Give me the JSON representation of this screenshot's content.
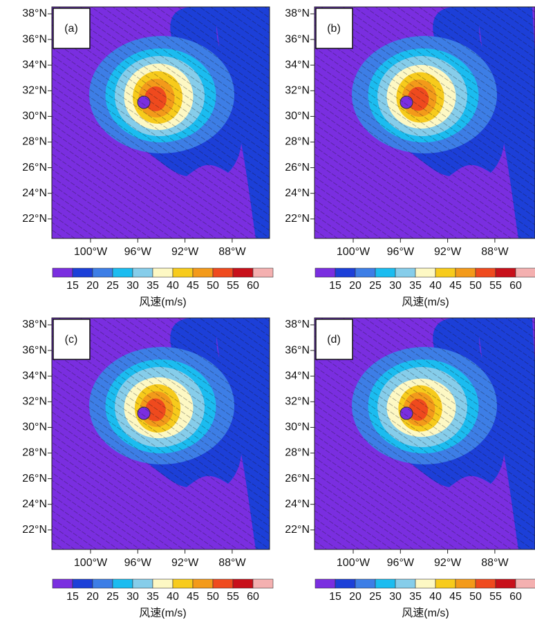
{
  "panels": [
    {
      "label": "(a)"
    },
    {
      "label": "(b)"
    },
    {
      "label": "(c)"
    },
    {
      "label": "(d)"
    }
  ],
  "lat_ticks": [
    "38°N",
    "36°N",
    "34°N",
    "32°N",
    "30°N",
    "28°N",
    "26°N",
    "24°N",
    "22°N"
  ],
  "lon_ticks": [
    "100°W",
    "96°W",
    "92°W",
    "88°W"
  ],
  "colorbar": {
    "ticks": [
      15,
      20,
      25,
      30,
      35,
      40,
      45,
      50,
      55,
      60
    ],
    "colors": [
      "#7a2ee0",
      "#1c3fd8",
      "#3d7ee6",
      "#1bbcf0",
      "#86cdea",
      "#fdf8c4",
      "#f7cb1c",
      "#f39a1a",
      "#ef4a1e",
      "#c8101a",
      "#f4b0b0"
    ],
    "label": "风速(m/s)"
  }
}
